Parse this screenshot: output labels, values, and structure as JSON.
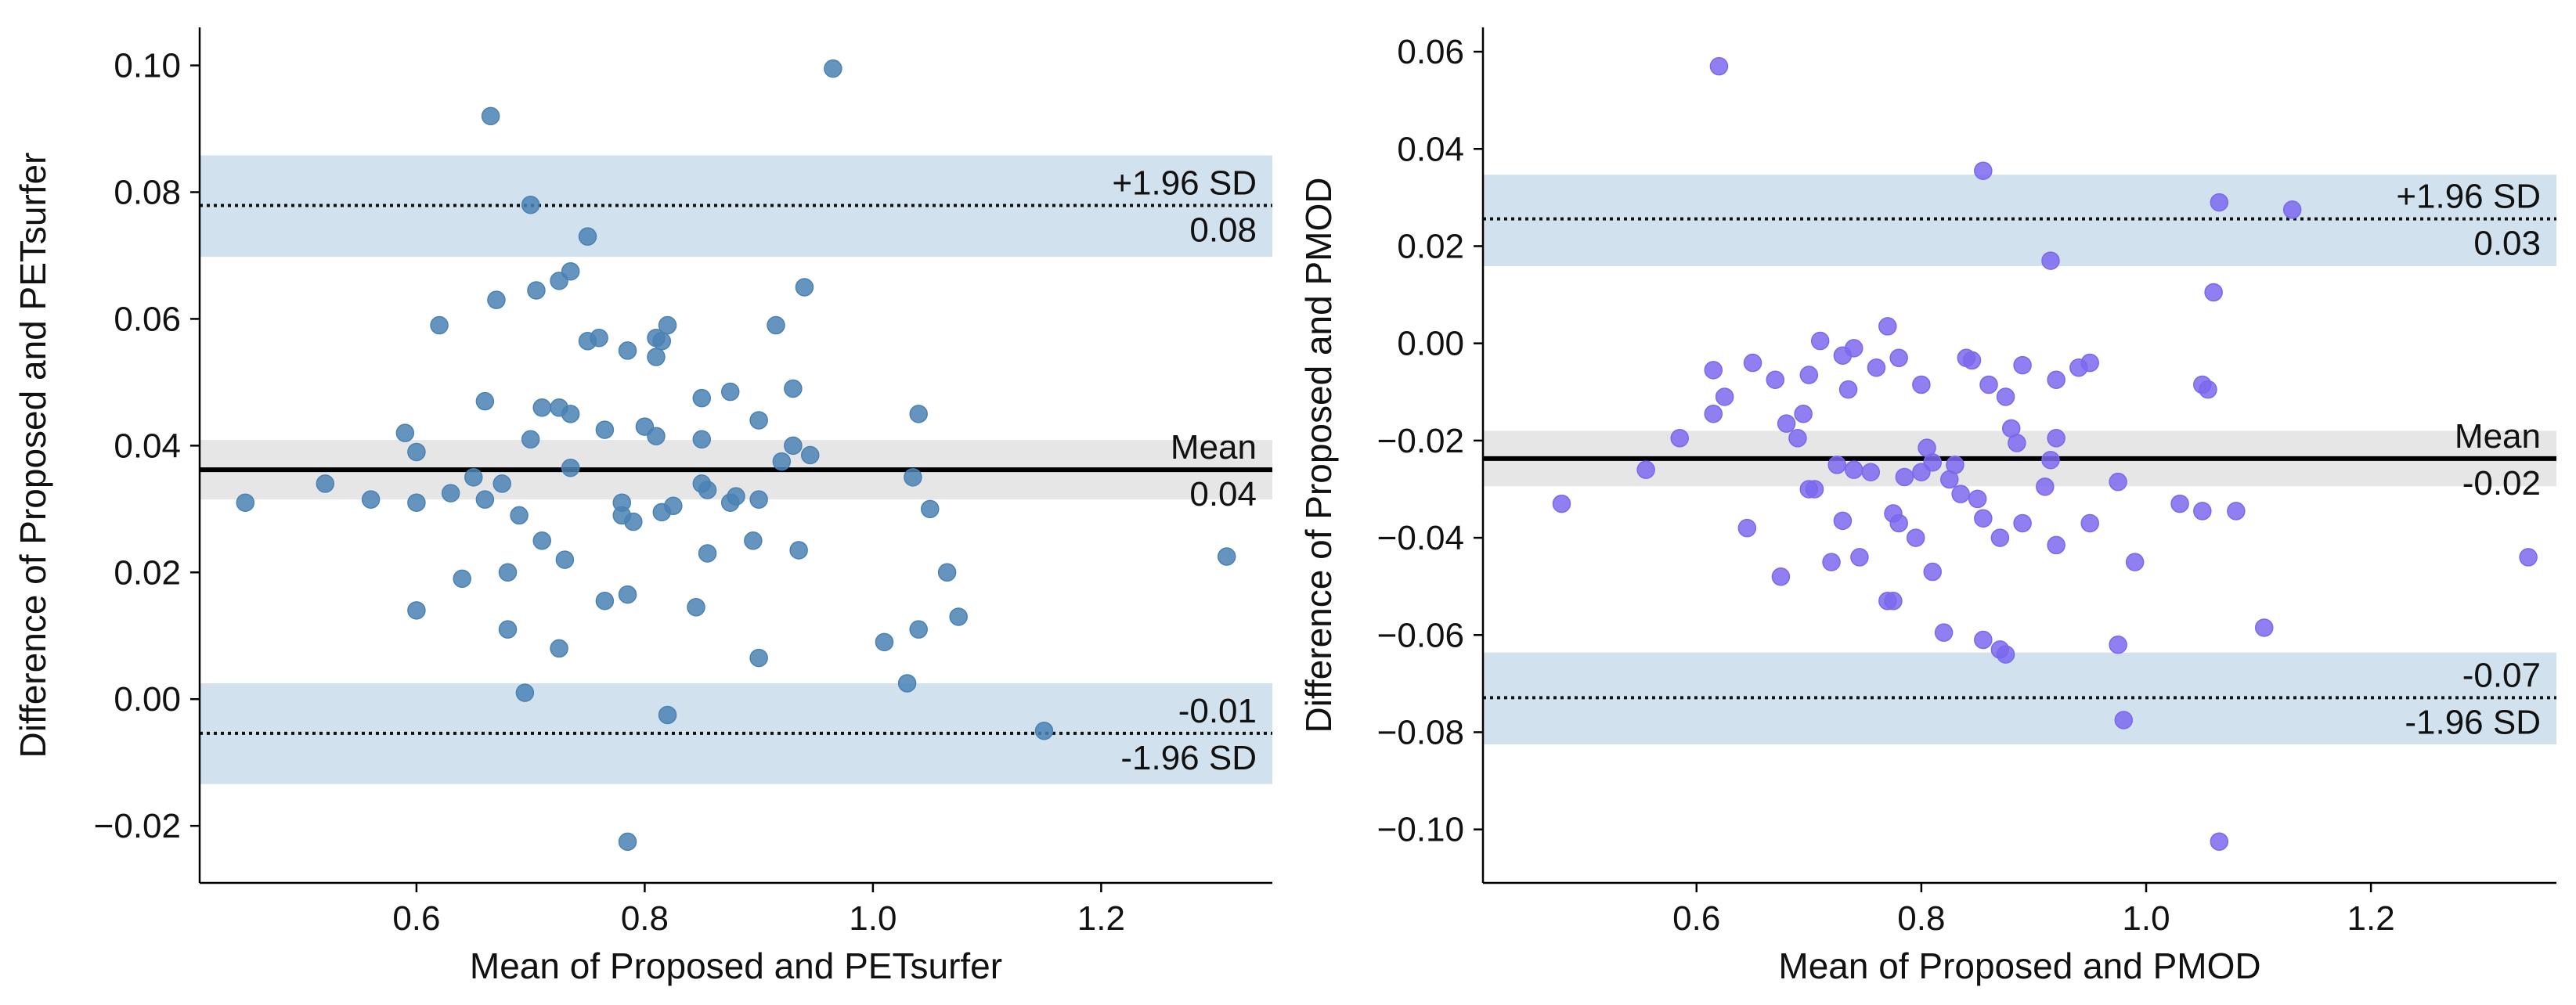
{
  "chart_data": [
    {
      "type": "scatter",
      "subtype": "bland-altman",
      "xlabel": "Mean of Proposed and PETsurfer",
      "ylabel": "Difference of Proposed and PETsurfer",
      "xlim": [
        0.41,
        1.35
      ],
      "ylim": [
        -0.029,
        0.106
      ],
      "xticks": [
        0.6,
        0.8,
        1.0,
        1.2
      ],
      "xtick_labels": [
        "0.6",
        "0.8",
        "1.0",
        "1.2"
      ],
      "yticks": [
        -0.02,
        0.0,
        0.02,
        0.04,
        0.06,
        0.08,
        0.1
      ],
      "ytick_labels": [
        "−0.02",
        "0.00",
        "0.02",
        "0.04",
        "0.06",
        "0.08",
        "0.10"
      ],
      "point_color": "#4a82b4",
      "mean": 0.0362,
      "mean_ci": [
        0.0315,
        0.0409
      ],
      "upper_loa": 0.0779,
      "upper_ci": [
        0.0698,
        0.0858
      ],
      "lower_loa": -0.0054,
      "lower_ci": [
        -0.0134,
        0.0025
      ],
      "labels": {
        "upper_name": "+1.96 SD",
        "upper_value": "0.08",
        "mean_name": "Mean",
        "mean_value": "0.04",
        "lower_value": "-0.01",
        "lower_name": "-1.96 SD"
      },
      "points": [
        [
          0.45,
          0.031
        ],
        [
          0.52,
          0.034
        ],
        [
          0.56,
          0.0315
        ],
        [
          0.59,
          0.042
        ],
        [
          0.6,
          0.039
        ],
        [
          0.6,
          0.031
        ],
        [
          0.6,
          0.014
        ],
        [
          0.62,
          0.059
        ],
        [
          0.63,
          0.0325
        ],
        [
          0.64,
          0.019
        ],
        [
          0.65,
          0.035
        ],
        [
          0.66,
          0.047
        ],
        [
          0.66,
          0.0315
        ],
        [
          0.665,
          0.092
        ],
        [
          0.67,
          0.063
        ],
        [
          0.675,
          0.034
        ],
        [
          0.68,
          0.02
        ],
        [
          0.68,
          0.011
        ],
        [
          0.69,
          0.029
        ],
        [
          0.695,
          0.001
        ],
        [
          0.7,
          0.078
        ],
        [
          0.7,
          0.041
        ],
        [
          0.705,
          0.0645
        ],
        [
          0.71,
          0.046
        ],
        [
          0.71,
          0.025
        ],
        [
          0.725,
          0.066
        ],
        [
          0.725,
          0.046
        ],
        [
          0.725,
          0.008
        ],
        [
          0.73,
          0.022
        ],
        [
          0.735,
          0.045
        ],
        [
          0.735,
          0.0365
        ],
        [
          0.735,
          0.0675
        ],
        [
          0.75,
          0.073
        ],
        [
          0.75,
          0.0565
        ],
        [
          0.76,
          0.057
        ],
        [
          0.765,
          0.0425
        ],
        [
          0.765,
          0.0155
        ],
        [
          0.78,
          0.031
        ],
        [
          0.78,
          0.029
        ],
        [
          0.785,
          0.055
        ],
        [
          0.785,
          0.0165
        ],
        [
          0.79,
          0.028
        ],
        [
          0.785,
          -0.0225
        ],
        [
          0.8,
          0.043
        ],
        [
          0.81,
          0.057
        ],
        [
          0.81,
          0.054
        ],
        [
          0.81,
          0.0415
        ],
        [
          0.815,
          0.0565
        ],
        [
          0.815,
          0.0295
        ],
        [
          0.82,
          0.059
        ],
        [
          0.82,
          -0.0025
        ],
        [
          0.825,
          0.0305
        ],
        [
          0.85,
          0.0475
        ],
        [
          0.85,
          0.041
        ],
        [
          0.85,
          0.034
        ],
        [
          0.845,
          0.0145
        ],
        [
          0.855,
          0.033
        ],
        [
          0.855,
          0.023
        ],
        [
          0.875,
          0.0485
        ],
        [
          0.875,
          0.031
        ],
        [
          0.88,
          0.032
        ],
        [
          0.895,
          0.025
        ],
        [
          0.9,
          0.044
        ],
        [
          0.9,
          0.0315
        ],
        [
          0.9,
          0.0065
        ],
        [
          0.915,
          0.059
        ],
        [
          0.92,
          0.0375
        ],
        [
          0.93,
          0.04
        ],
        [
          0.93,
          0.049
        ],
        [
          0.935,
          0.0235
        ],
        [
          0.94,
          0.065
        ],
        [
          0.945,
          0.0385
        ],
        [
          0.965,
          0.0995
        ],
        [
          1.01,
          0.009
        ],
        [
          1.03,
          0.0025
        ],
        [
          1.035,
          0.035
        ],
        [
          1.04,
          0.045
        ],
        [
          1.04,
          0.011
        ],
        [
          1.05,
          0.03
        ],
        [
          1.065,
          0.02
        ],
        [
          1.075,
          0.013
        ],
        [
          1.15,
          -0.005
        ],
        [
          1.31,
          0.0225
        ]
      ]
    },
    {
      "type": "scatter",
      "subtype": "bland-altman",
      "xlabel": "Mean of Proposed and PMOD",
      "ylabel": "Difference of Proposed and PMOD",
      "xlim": [
        0.41,
        1.365
      ],
      "ylim": [
        -0.111,
        0.065
      ],
      "xticks": [
        0.6,
        0.8,
        1.0,
        1.2
      ],
      "xtick_labels": [
        "0.6",
        "0.8",
        "1.0",
        "1.2"
      ],
      "yticks": [
        -0.1,
        -0.08,
        -0.06,
        -0.04,
        -0.02,
        0.0,
        0.02,
        0.04,
        0.06
      ],
      "ytick_labels": [
        "−0.10",
        "−0.08",
        "−0.06",
        "−0.04",
        "−0.02",
        "0.00",
        "0.02",
        "0.04",
        "0.06"
      ],
      "point_color": "#7b68ee",
      "mean": -0.0237,
      "mean_ci": [
        -0.0294,
        -0.018
      ],
      "upper_loa": 0.0256,
      "upper_ci": [
        0.0159,
        0.0347
      ],
      "lower_loa": -0.0729,
      "lower_ci": [
        -0.0825,
        -0.0636
      ],
      "labels": {
        "upper_name": "+1.96 SD",
        "upper_value": "0.03",
        "mean_name": "Mean",
        "mean_value": "-0.02",
        "lower_value": "-0.07",
        "lower_name": "-1.96 SD"
      },
      "points": [
        [
          0.48,
          -0.033
        ],
        [
          0.555,
          -0.026
        ],
        [
          0.585,
          -0.0195
        ],
        [
          0.615,
          -0.0055
        ],
        [
          0.615,
          -0.0145
        ],
        [
          0.62,
          0.057
        ],
        [
          0.625,
          -0.011
        ],
        [
          0.645,
          -0.038
        ],
        [
          0.65,
          -0.004
        ],
        [
          0.67,
          -0.0075
        ],
        [
          0.675,
          -0.048
        ],
        [
          0.68,
          -0.0165
        ],
        [
          0.69,
          -0.0195
        ],
        [
          0.695,
          -0.0145
        ],
        [
          0.7,
          -0.03
        ],
        [
          0.7,
          -0.0065
        ],
        [
          0.705,
          -0.03
        ],
        [
          0.71,
          0.0005
        ],
        [
          0.72,
          -0.045
        ],
        [
          0.725,
          -0.025
        ],
        [
          0.73,
          -0.0025
        ],
        [
          0.73,
          -0.0365
        ],
        [
          0.735,
          -0.0095
        ],
        [
          0.74,
          -0.001
        ],
        [
          0.74,
          -0.026
        ],
        [
          0.745,
          -0.044
        ],
        [
          0.755,
          -0.0265
        ],
        [
          0.76,
          -0.005
        ],
        [
          0.77,
          0.0035
        ],
        [
          0.77,
          -0.053
        ],
        [
          0.775,
          -0.035
        ],
        [
          0.775,
          -0.053
        ],
        [
          0.78,
          -0.003
        ],
        [
          0.78,
          -0.037
        ],
        [
          0.785,
          -0.0275
        ],
        [
          0.795,
          -0.04
        ],
        [
          0.8,
          -0.0265
        ],
        [
          0.8,
          -0.0085
        ],
        [
          0.805,
          -0.0215
        ],
        [
          0.81,
          -0.047
        ],
        [
          0.81,
          -0.0245
        ],
        [
          0.82,
          -0.0595
        ],
        [
          0.825,
          -0.028
        ],
        [
          0.83,
          -0.025
        ],
        [
          0.835,
          -0.031
        ],
        [
          0.84,
          -0.003
        ],
        [
          0.845,
          -0.0035
        ],
        [
          0.85,
          -0.032
        ],
        [
          0.855,
          -0.061
        ],
        [
          0.855,
          -0.036
        ],
        [
          0.855,
          0.0355
        ],
        [
          0.86,
          -0.0085
        ],
        [
          0.87,
          -0.04
        ],
        [
          0.87,
          -0.063
        ],
        [
          0.875,
          -0.064
        ],
        [
          0.875,
          -0.011
        ],
        [
          0.88,
          -0.0175
        ],
        [
          0.885,
          -0.0205
        ],
        [
          0.89,
          -0.037
        ],
        [
          0.89,
          -0.0045
        ],
        [
          0.91,
          -0.0295
        ],
        [
          0.915,
          -0.024
        ],
        [
          0.915,
          0.017
        ],
        [
          0.92,
          -0.0195
        ],
        [
          0.92,
          -0.0075
        ],
        [
          0.92,
          -0.0415
        ],
        [
          0.94,
          -0.005
        ],
        [
          0.95,
          -0.004
        ],
        [
          0.95,
          -0.037
        ],
        [
          0.975,
          -0.0285
        ],
        [
          0.975,
          -0.062
        ],
        [
          0.98,
          -0.0775
        ],
        [
          0.99,
          -0.045
        ],
        [
          1.03,
          -0.033
        ],
        [
          1.05,
          -0.0345
        ],
        [
          1.05,
          -0.0085
        ],
        [
          1.055,
          -0.0095
        ],
        [
          1.06,
          0.0105
        ],
        [
          1.065,
          0.029
        ],
        [
          1.065,
          -0.1025
        ],
        [
          1.08,
          -0.0345
        ],
        [
          1.105,
          -0.0585
        ],
        [
          1.13,
          0.0275
        ],
        [
          1.34,
          -0.044
        ]
      ]
    }
  ]
}
